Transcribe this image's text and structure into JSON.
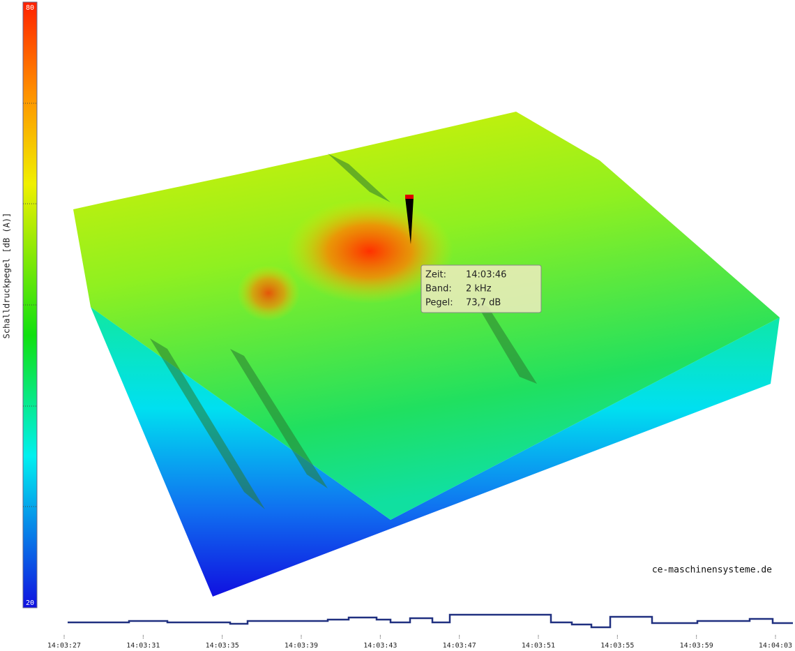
{
  "colorbar": {
    "label": "Schalldruckpegel [dB (A)]",
    "max": "80",
    "min": "20"
  },
  "tooltip": {
    "rows": [
      [
        "Zeit:",
        "14:03:46"
      ],
      [
        "Band:",
        "2 kHz"
      ],
      [
        "Pegel:",
        "73,7 dB"
      ]
    ]
  },
  "watermark": "ce-maschinensysteme.de",
  "time_axis": {
    "ticks": [
      "14:03:27",
      "14:03:31",
      "14:03:35",
      "14:03:39",
      "14:03:43",
      "14:03:47",
      "14:03:51",
      "14:03:55",
      "14:03:59",
      "14:04:03"
    ]
  }
}
